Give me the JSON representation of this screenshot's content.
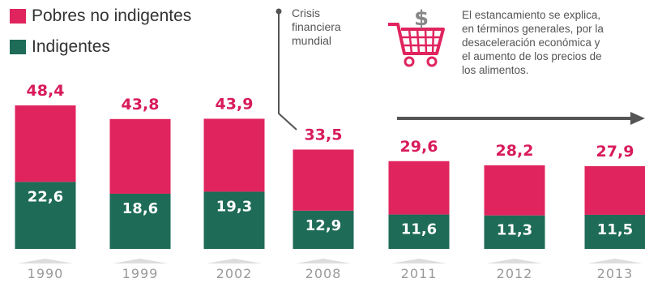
{
  "legend": {
    "pobres_label": "Pobres no indigentes",
    "indigentes_label": "Indigentes"
  },
  "annotation_crisis": [
    "Crisis",
    "financiera",
    "mundial"
  ],
  "annotation_note": [
    "El estancamiento se explica,",
    "en términos generales, por la",
    "desaceleración económica y",
    "el aumento de los precios de",
    "los alimentos."
  ],
  "icons": {
    "cart": "shopping-cart-dollar-icon",
    "arrow": "arrow-right-icon"
  },
  "colors": {
    "pobres": "#e0245e",
    "indigentes": "#1e6b57",
    "value_top": "#d81b5a",
    "year": "#9a9a9a"
  },
  "chart_data": {
    "type": "bar",
    "stacked": true,
    "categories": [
      "1990",
      "1999",
      "2002",
      "2008",
      "2011",
      "2012",
      "2013"
    ],
    "series": [
      {
        "name": "Indigentes",
        "values": [
          22.6,
          18.6,
          19.3,
          12.9,
          11.6,
          11.3,
          11.5
        ]
      },
      {
        "name": "Pobres no indigentes",
        "values": [
          25.8,
          25.2,
          24.6,
          20.6,
          18.0,
          16.9,
          16.4
        ]
      }
    ],
    "totals": [
      "48,4",
      "43,8",
      "43,9",
      "33,5",
      "29,6",
      "28,2",
      "27,9"
    ],
    "indigentes_labels": [
      "22,6",
      "18,6",
      "19,3",
      "12,9",
      "11,6",
      "11,3",
      "11,5"
    ],
    "ylim": [
      0,
      48.4
    ],
    "legend_position": "top-left"
  }
}
